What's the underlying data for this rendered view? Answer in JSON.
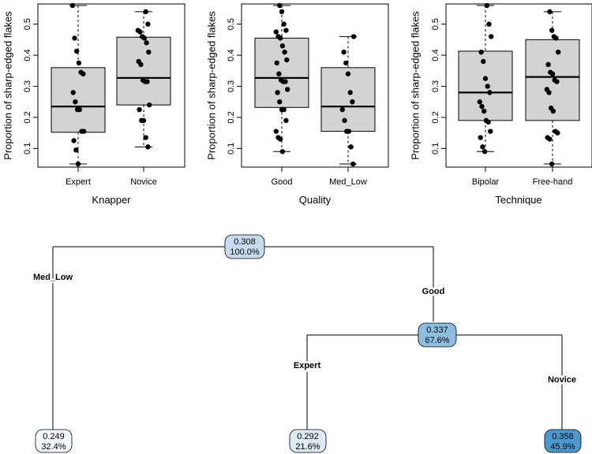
{
  "chart_data": [
    {
      "type": "boxplot",
      "title": "",
      "xlabel": "Knapper",
      "ylabel": "Proportion of sharp-edged flakes",
      "ylim": [
        0.04,
        0.565
      ],
      "yticks": [
        "0.1",
        "0.2",
        "0.3",
        "0.4",
        "0.5"
      ],
      "categories": [
        "Expert",
        "Novice"
      ],
      "boxes": [
        {
          "min": 0.05,
          "q1": 0.152,
          "median": 0.235,
          "q3": 0.36,
          "max": 0.56
        },
        {
          "min": 0.105,
          "q1": 0.24,
          "median": 0.327,
          "q3": 0.458,
          "max": 0.54
        }
      ],
      "points": [
        [
          0.56,
          0.455,
          0.413,
          0.375,
          0.345,
          0.34,
          0.28,
          0.25,
          0.225,
          0.225,
          0.155,
          0.155,
          0.125,
          0.095,
          0.05
        ],
        [
          0.54,
          0.5,
          0.48,
          0.475,
          0.46,
          0.455,
          0.44,
          0.41,
          0.38,
          0.37,
          0.32,
          0.315,
          0.315,
          0.24,
          0.225,
          0.19,
          0.19,
          0.135,
          0.105
        ]
      ]
    },
    {
      "type": "boxplot",
      "title": "",
      "xlabel": "Quality",
      "ylabel": "Proportion of sharp-edged flakes",
      "ylim": [
        0.04,
        0.565
      ],
      "yticks": [
        "0.1",
        "0.2",
        "0.3",
        "0.4",
        "0.5"
      ],
      "categories": [
        "Good",
        "Med_Low"
      ],
      "boxes": [
        {
          "min": 0.09,
          "q1": 0.232,
          "median": 0.327,
          "q3": 0.455,
          "max": 0.56
        },
        {
          "min": 0.05,
          "q1": 0.155,
          "median": 0.235,
          "q3": 0.36,
          "max": 0.46
        }
      ],
      "points": [
        [
          0.56,
          0.54,
          0.5,
          0.48,
          0.475,
          0.46,
          0.455,
          0.43,
          0.41,
          0.385,
          0.375,
          0.34,
          0.32,
          0.315,
          0.315,
          0.29,
          0.28,
          0.25,
          0.225,
          0.225,
          0.19,
          0.155,
          0.135,
          0.13,
          0.09
        ],
        [
          0.46,
          0.41,
          0.375,
          0.34,
          0.28,
          0.25,
          0.225,
          0.19,
          0.155,
          0.155,
          0.105,
          0.05
        ]
      ]
    },
    {
      "type": "boxplot",
      "title": "",
      "xlabel": "Technique",
      "ylabel": "Proportion of sharp-edged flakes",
      "ylim": [
        0.04,
        0.565
      ],
      "yticks": [
        "0.1",
        "0.2",
        "0.3",
        "0.4",
        "0.5"
      ],
      "categories": [
        "Bipolar",
        "Free-hand"
      ],
      "boxes": [
        {
          "min": 0.09,
          "q1": 0.19,
          "median": 0.28,
          "q3": 0.413,
          "max": 0.56
        },
        {
          "min": 0.05,
          "q1": 0.19,
          "median": 0.33,
          "q3": 0.45,
          "max": 0.54
        }
      ],
      "points": [
        [
          0.56,
          0.5,
          0.46,
          0.41,
          0.38,
          0.325,
          0.3,
          0.28,
          0.25,
          0.235,
          0.22,
          0.19,
          0.185,
          0.155,
          0.135,
          0.105,
          0.09
        ],
        [
          0.54,
          0.48,
          0.46,
          0.455,
          0.41,
          0.37,
          0.345,
          0.34,
          0.32,
          0.315,
          0.29,
          0.28,
          0.23,
          0.22,
          0.155,
          0.15,
          0.135,
          0.13,
          0.05
        ]
      ]
    }
  ],
  "tree": {
    "type": "decision-tree",
    "nodes": [
      {
        "id": "root",
        "value": "0.308",
        "percent": "100.0%",
        "fill": "#c6dbef"
      },
      {
        "id": "quality_good",
        "value": "0.337",
        "percent": "67.6%",
        "fill": "#8fbfe0"
      },
      {
        "id": "leaf_medlow",
        "value": "0.249",
        "percent": "32.4%",
        "fill": "#f7fbff"
      },
      {
        "id": "leaf_expert",
        "value": "0.292",
        "percent": "21.6%",
        "fill": "#deebf7"
      },
      {
        "id": "leaf_novice",
        "value": "0.358",
        "percent": "45.9%",
        "fill": "#4f98cc"
      }
    ],
    "split_labels": {
      "left_root": "Med_Low",
      "right_root": "Good",
      "left_good": "Expert",
      "right_good": "Novice"
    }
  },
  "colors": {
    "box_fill": "#d3d3d3",
    "point": "#000000",
    "line": "#000000"
  }
}
